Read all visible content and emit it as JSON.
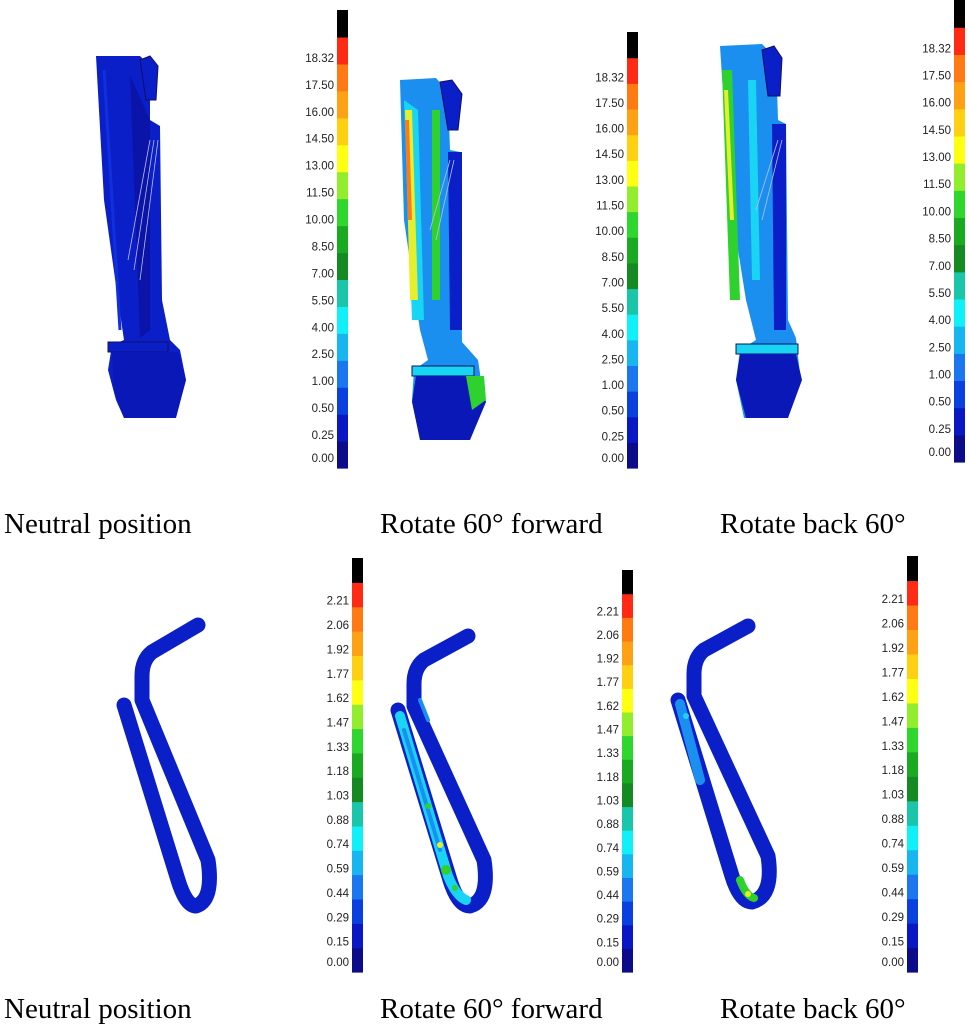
{
  "colorbar_colors": [
    "#0c0c8a",
    "#0a17c4",
    "#0a3fe0",
    "#1b76f0",
    "#17b6f0",
    "#0ff0f8",
    "#19c6a9",
    "#168a22",
    "#1aaa22",
    "#2ed62e",
    "#92ee2c",
    "#ffff11",
    "#ffcf11",
    "#ffa114",
    "#ff7a12",
    "#ff2a14",
    "#000000"
  ],
  "colorbar_top_ticks": [
    "0.00",
    "0.25",
    "0.50",
    "1.00",
    "2.50",
    "4.00",
    "5.50",
    "7.00",
    "8.50",
    "10.00",
    "11.50",
    "13.00",
    "14.50",
    "16.00",
    "17.50",
    "18.32"
  ],
  "colorbar_bottom_ticks": [
    "0.00",
    "0.15",
    "0.29",
    "0.44",
    "0.59",
    "0.74",
    "0.88",
    "1.03",
    "1.18",
    "1.33",
    "1.47",
    "1.62",
    "1.77",
    "1.92",
    "2.06",
    "2.21"
  ],
  "captions": {
    "top_left": "Neutral position",
    "top_middle": "Rotate 60° forward",
    "top_right": "Rotate back 60°",
    "bottom_left": "Neutral position",
    "bottom_middle": "Rotate 60° forward",
    "bottom_right": "Rotate back 60°"
  },
  "stress_colors": {
    "base": "#0a1fc8",
    "dark": "#0a0f9a",
    "light": "#1a8ff0",
    "cyan": "#19d4f2",
    "green": "#2fd12f",
    "yellow": "#e6ef2a",
    "red": "#ff3a14"
  }
}
